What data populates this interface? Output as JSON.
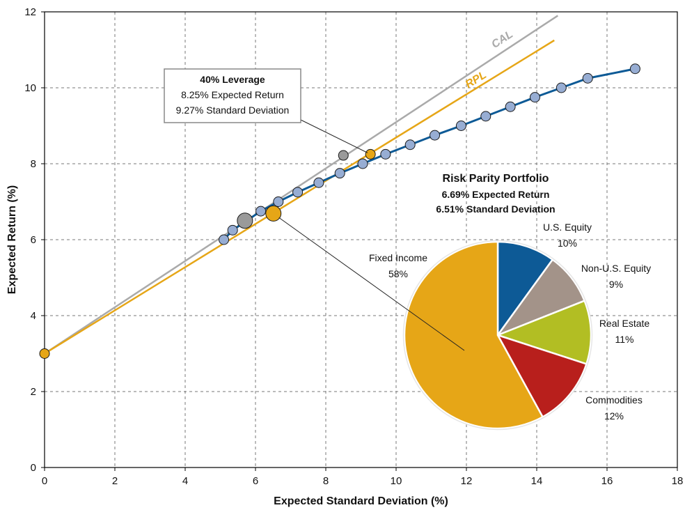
{
  "chart_data": [
    {
      "type": "line",
      "xlabel": "Expected Standard Deviation (%)",
      "ylabel": "Expected Return (%)",
      "xlim": [
        0,
        18
      ],
      "ylim": [
        0,
        12
      ],
      "xticks": [
        "0",
        "2",
        "4",
        "6",
        "8",
        "10",
        "12",
        "14",
        "16",
        "18"
      ],
      "yticks": [
        "0",
        "2",
        "4",
        "6",
        "8",
        "10",
        "12"
      ],
      "grid": true,
      "colors": {
        "frontier": "#0d5a96",
        "point": "#97add3",
        "cal": "#aaaaaa",
        "rpl": "#e6a617",
        "gray_point": "#9a9a9a"
      },
      "series": [
        {
          "name": "CAL",
          "x": [
            0,
            14.6
          ],
          "y": [
            3.0,
            11.9
          ]
        },
        {
          "name": "RPL",
          "x": [
            0,
            14.5
          ],
          "y": [
            3.0,
            11.25
          ]
        },
        {
          "name": "",
          "x": [
            5.1,
            5.35,
            6.15,
            6.65,
            7.2,
            7.8,
            8.4,
            9.05,
            9.7,
            10.4,
            11.1,
            11.85,
            12.55,
            13.25,
            13.95,
            14.7,
            15.45,
            16.8
          ],
          "y": [
            6.0,
            6.25,
            6.75,
            7.0,
            7.25,
            7.5,
            7.75,
            8.0,
            8.25,
            8.5,
            8.75,
            9.0,
            9.25,
            9.5,
            9.75,
            10.0,
            10.25,
            10.5
          ]
        }
      ],
      "highlight_points": [
        {
          "x": 0,
          "y": 3.0,
          "color": "#e6a617",
          "size": "small"
        },
        {
          "x": 6.51,
          "y": 6.69,
          "color": "#e6a617",
          "size": "large"
        },
        {
          "x": 9.27,
          "y": 8.25,
          "color": "#e6a617",
          "size": "small"
        },
        {
          "x": 5.7,
          "y": 6.5,
          "color": "#9a9a9a",
          "size": "large"
        },
        {
          "x": 8.5,
          "y": 8.22,
          "color": "#9a9a9a",
          "size": "small"
        }
      ],
      "annotations": {
        "leverage_title": "40% Leverage",
        "leverage_return": "8.25% Expected Return",
        "leverage_sd": "9.27% Standard Deviation",
        "rp_title": "Risk Parity Portfolio",
        "rp_return": "6.69% Expected Return",
        "rp_sd": "6.51% Standard Deviation"
      }
    },
    {
      "type": "pie",
      "slices": [
        {
          "label": "U.S. Equity",
          "pct_label": "10%",
          "value": 10,
          "color": "#0d5a96"
        },
        {
          "label": "Non-U.S. Equity",
          "pct_label": "9%",
          "value": 9,
          "color": "#a39389"
        },
        {
          "label": "Real Estate",
          "pct_label": "11%",
          "value": 11,
          "color": "#b2be23"
        },
        {
          "label": "Commodities",
          "pct_label": "12%",
          "value": 12,
          "color": "#b81f1c"
        },
        {
          "label": "Fixed Income",
          "pct_label": "58%",
          "value": 58,
          "color": "#e6a617"
        }
      ]
    }
  ]
}
